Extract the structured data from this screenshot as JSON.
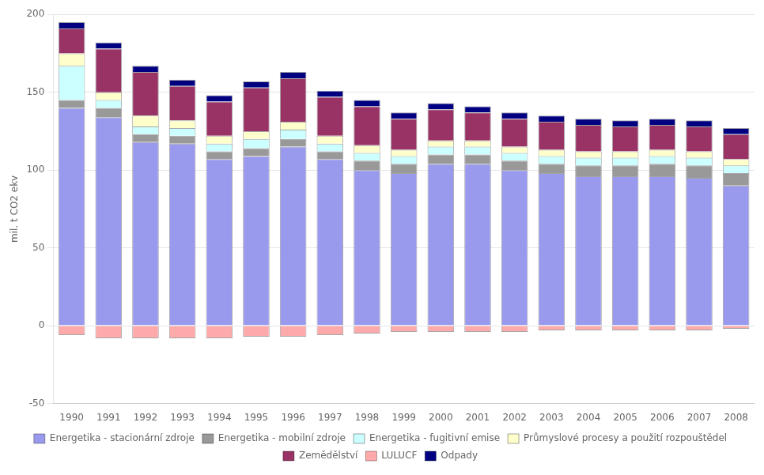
{
  "chart_data": {
    "type": "bar",
    "stacked": true,
    "categories": [
      1990,
      1991,
      1992,
      1993,
      1994,
      1995,
      1996,
      1997,
      1998,
      1999,
      2000,
      2001,
      2002,
      2003,
      2004,
      2005,
      2006,
      2007,
      2008
    ],
    "series": [
      {
        "name": "Energetika - stacionární zdroje",
        "color": "#9999ee",
        "values": [
          140,
          134,
          118,
          117,
          107,
          109,
          115,
          107,
          100,
          98,
          104,
          104,
          100,
          98,
          96,
          96,
          96,
          95,
          90
        ]
      },
      {
        "name": "Energetika - mobilní zdroje",
        "color": "#999999",
        "values": [
          5,
          6,
          5,
          5,
          5,
          5,
          5,
          5,
          6,
          6,
          6,
          6,
          6,
          6,
          7,
          7,
          8,
          8,
          8
        ]
      },
      {
        "name": "Energetika - fugitivní emise",
        "color": "#ccffff",
        "values": [
          22,
          5,
          5,
          5,
          5,
          6,
          6,
          5,
          5,
          5,
          5,
          5,
          5,
          5,
          5,
          5,
          5,
          5,
          5
        ]
      },
      {
        "name": "Průmyslové procesy a použití rozpouštědel",
        "color": "#ffffcc",
        "values": [
          8,
          5,
          7,
          5,
          5,
          5,
          5,
          5,
          5,
          4,
          4,
          4,
          4,
          4,
          4,
          4,
          4,
          4,
          4
        ]
      },
      {
        "name": "Zemědělství",
        "color": "#993366",
        "values": [
          16,
          28,
          28,
          22,
          22,
          28,
          28,
          25,
          25,
          20,
          20,
          18,
          18,
          18,
          17,
          16,
          16,
          16,
          16
        ]
      },
      {
        "name": "LULUCF",
        "color": "#ffaaaa",
        "values": [
          -6,
          -8,
          -8,
          -8,
          -8,
          -7,
          -7,
          -6,
          -5,
          -4,
          -4,
          -4,
          -4,
          -3,
          -3,
          -3,
          -3,
          -3,
          -2
        ]
      },
      {
        "name": "Odpady",
        "color": "#000080",
        "values": [
          4,
          4,
          4,
          4,
          4,
          4,
          4,
          4,
          4,
          4,
          4,
          4,
          4,
          4,
          4,
          4,
          4,
          4,
          4
        ]
      }
    ],
    "ylabel": "mil. t CO2 ekv",
    "ylim": [
      -50,
      200
    ],
    "yticks": [
      -50,
      0,
      50,
      100,
      150,
      200
    ],
    "grid": true,
    "legend": "bottom"
  }
}
